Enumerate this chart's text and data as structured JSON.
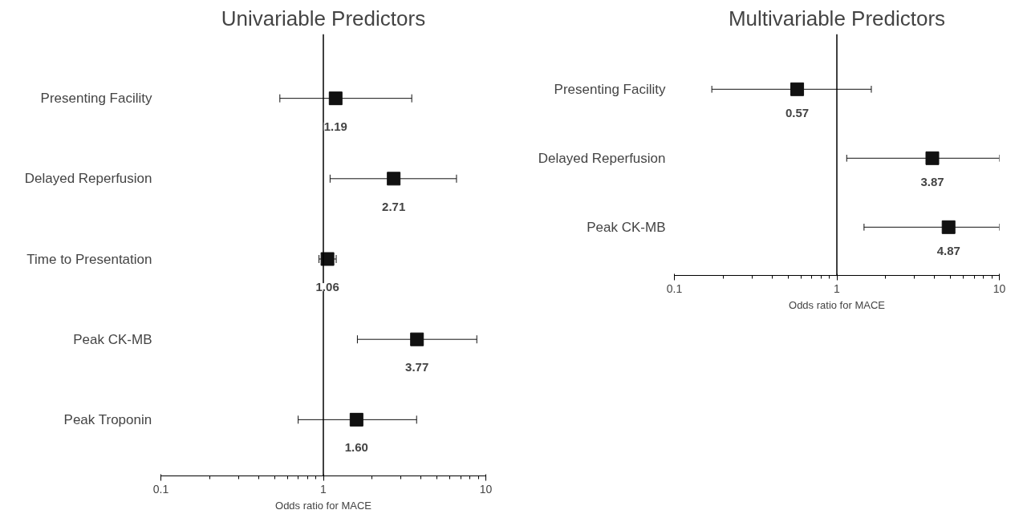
{
  "chart_data": [
    {
      "type": "scatter",
      "title": "Univariable Predictors",
      "xlabel": "Odds ratio for MACE",
      "categories": [
        "Presenting Facility",
        "Delayed Reperfusion",
        "Time to Presentation",
        "Peak CK-MB",
        "Peak Troponin"
      ],
      "orientation": "horizontal",
      "log": "x",
      "xlim": [
        0.1,
        10
      ],
      "xticks": [
        0.1,
        1,
        10
      ],
      "marker": "square",
      "grid": false,
      "series": [
        {
          "color": "#111111",
          "values": [
            1.19,
            2.71,
            1.06,
            3.77,
            1.6
          ],
          "value_labels": [
            "1.19",
            "2.71",
            "1.06",
            "3.77",
            "1.60"
          ],
          "errors": [
            [
              0.54,
              3.5
            ],
            [
              1.1,
              6.6
            ],
            [
              0.94,
              1.2
            ],
            [
              1.62,
              8.8
            ],
            [
              0.7,
              3.75
            ]
          ]
        }
      ],
      "ref_lines": [
        {
          "axis": "x",
          "value": 1,
          "color": "#000000"
        }
      ]
    },
    {
      "type": "scatter",
      "title": "Multivariable Predictors",
      "xlabel": "Odds ratio for MACE",
      "categories": [
        "Presenting Facility",
        "Delayed Reperfusion",
        "Peak CK-MB"
      ],
      "orientation": "horizontal",
      "log": "x",
      "xlim": [
        0.1,
        10
      ],
      "xticks": [
        0.1,
        1,
        10
      ],
      "marker": "square",
      "grid": false,
      "series": [
        {
          "color": "#111111",
          "values": [
            0.57,
            3.87,
            4.87
          ],
          "value_labels": [
            "0.57",
            "3.87",
            "4.87"
          ],
          "errors": [
            [
              0.17,
              1.63
            ],
            [
              1.15,
              10
            ],
            [
              1.47,
              10
            ]
          ]
        }
      ],
      "ref_lines": [
        {
          "axis": "x",
          "value": 1,
          "color": "#000000"
        }
      ]
    }
  ]
}
